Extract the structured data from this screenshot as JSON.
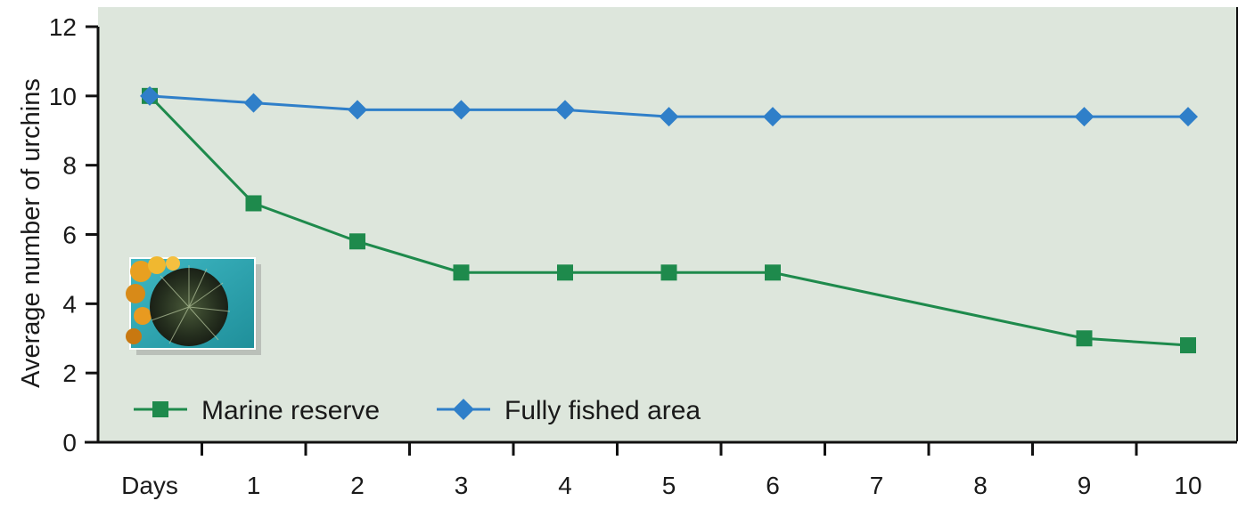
{
  "chart_data": {
    "type": "line",
    "title": "",
    "xlabel": "",
    "ylabel": "Average number of urchins",
    "x_tick_labels": [
      "Days",
      "1",
      "2",
      "3",
      "4",
      "5",
      "6",
      "7",
      "8",
      "9",
      "10"
    ],
    "ylim": [
      0,
      12
    ],
    "y_ticks": [
      0,
      2,
      4,
      6,
      8,
      10,
      12
    ],
    "grid": false,
    "legend_position": "bottom-left",
    "series": [
      {
        "name": "Marine reserve",
        "marker": "square",
        "color": "#1e8a4c",
        "points": [
          {
            "x": 0,
            "y": 10
          },
          {
            "x": 1,
            "y": 6.9
          },
          {
            "x": 2,
            "y": 5.8
          },
          {
            "x": 3,
            "y": 4.9
          },
          {
            "x": 4,
            "y": 4.9
          },
          {
            "x": 5,
            "y": 4.9
          },
          {
            "x": 6,
            "y": 4.9
          },
          {
            "x": 9,
            "y": 3.0
          },
          {
            "x": 10,
            "y": 2.8
          }
        ]
      },
      {
        "name": "Fully fished area",
        "marker": "diamond",
        "color": "#2f7fc9",
        "points": [
          {
            "x": 0,
            "y": 10
          },
          {
            "x": 1,
            "y": 9.8
          },
          {
            "x": 2,
            "y": 9.6
          },
          {
            "x": 3,
            "y": 9.6
          },
          {
            "x": 4,
            "y": 9.6
          },
          {
            "x": 5,
            "y": 9.4
          },
          {
            "x": 6,
            "y": 9.4
          },
          {
            "x": 9,
            "y": 9.4
          },
          {
            "x": 10,
            "y": 9.4
          }
        ]
      }
    ],
    "plot_background": "#dde6dc",
    "inset_image": "sea-urchin-photo"
  }
}
